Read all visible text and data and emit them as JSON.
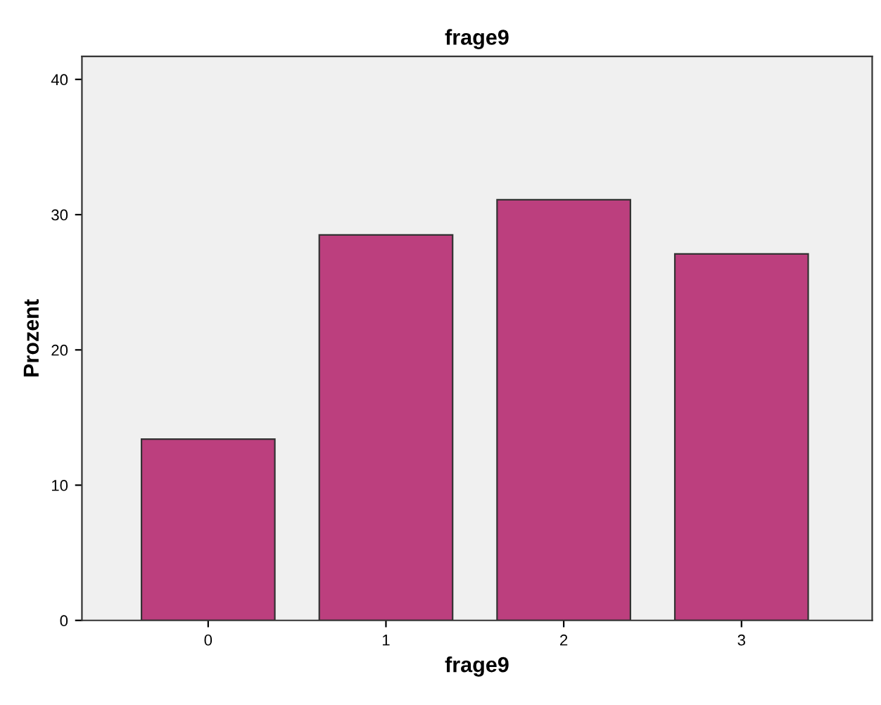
{
  "chart_data": {
    "type": "bar",
    "title": "frage9",
    "xlabel": "frage9",
    "ylabel": "Prozent",
    "categories": [
      "0",
      "1",
      "2",
      "3"
    ],
    "values": [
      13.4,
      28.5,
      31.1,
      27.1
    ],
    "color": "#bc3f7e",
    "ylim": [
      0,
      41.7
    ],
    "yticks": [
      0,
      10,
      20,
      30,
      40
    ],
    "grid": false
  }
}
